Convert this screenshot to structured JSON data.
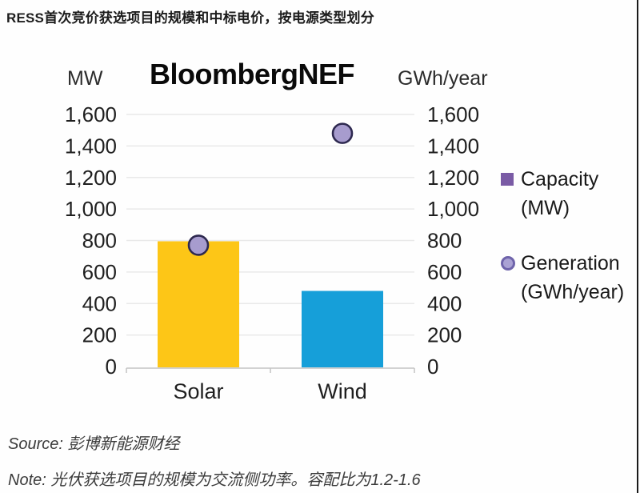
{
  "page": {
    "title": "RESS首次竞价获选项目的规模和中标电价，按电源类型划分",
    "source_prefix": "Source: ",
    "source_text": "彭博新能源财经",
    "note_prefix": "Note: ",
    "note_text": "光伏获选项目的规模为交流侧功率。容配比为1.2-1.6"
  },
  "chart": {
    "watermark": "BloombergNEF",
    "left_axis_unit": "MW",
    "right_axis_unit": "GWh/year",
    "legend": {
      "capacity_line1": "Capacity",
      "capacity_line2": "(MW)",
      "generation_line1": "Generation",
      "generation_line2": "(GWh/year)"
    }
  },
  "chart_data": {
    "type": "bar",
    "title": "BloombergNEF",
    "categories": [
      "Solar",
      "Wind"
    ],
    "series": [
      {
        "name": "Capacity (MW)",
        "type": "bar",
        "axis": "left",
        "values": [
          795,
          480
        ],
        "bar_colors": [
          "#fdc617",
          "#169fd9"
        ]
      },
      {
        "name": "Generation (GWh/year)",
        "type": "scatter",
        "axis": "right",
        "values": [
          770,
          1480
        ],
        "marker_fill": "#a79cce",
        "marker_stroke": "#2e2950"
      }
    ],
    "left_axis_label": "MW",
    "right_axis_label": "GWh/year",
    "ylim": [
      0,
      1600
    ],
    "ytick_step": 200,
    "ytick_labels": [
      "0",
      "200",
      "400",
      "600",
      "800",
      "1,000",
      "1,200",
      "1,400",
      "1,600"
    ],
    "grid": true,
    "legend_position": "right",
    "colors": {
      "gridline": "#e9e9e9",
      "axis_line": "#c3c3c3",
      "tick_text": "#1f1f1f"
    }
  }
}
